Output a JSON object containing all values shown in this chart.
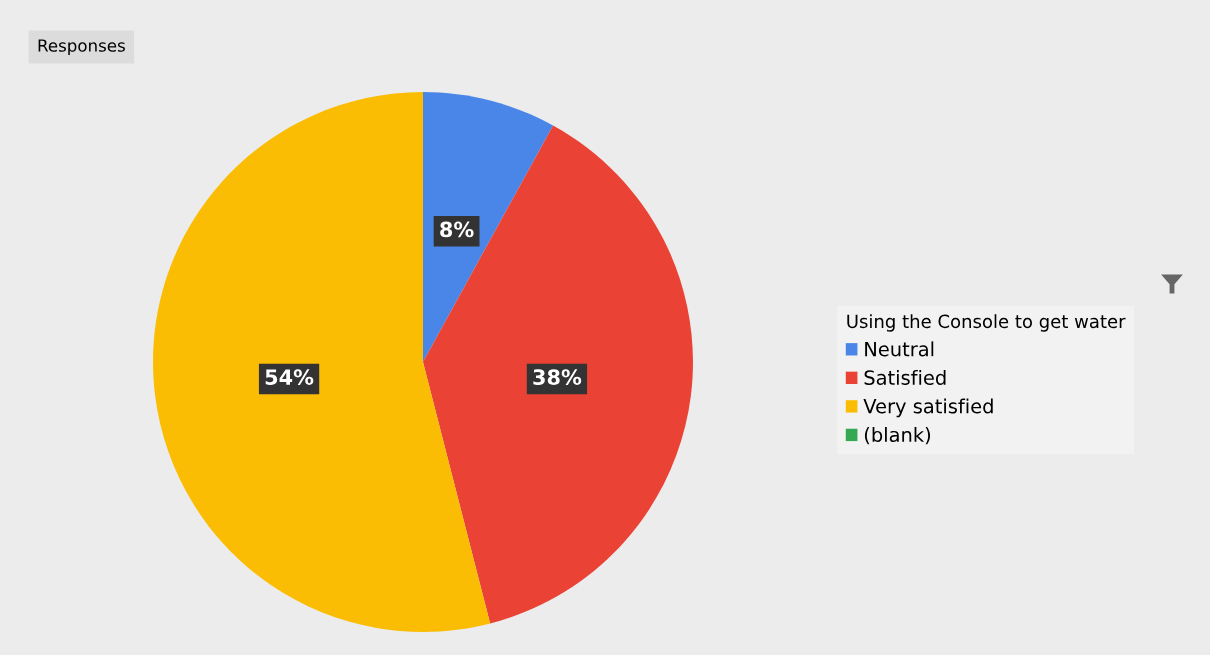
{
  "chart_data": {
    "type": "pie",
    "categories": [
      "Neutral",
      "Satisfied",
      "Very satisfied",
      "(blank)"
    ],
    "values": [
      8,
      38,
      54,
      0
    ],
    "colors": [
      "#4a86e8",
      "#ea4335",
      "#fbbc04",
      "#34a853"
    ],
    "value_labels": [
      "8%",
      "38%",
      "54%",
      null
    ],
    "legend_title": "Using the Console to get water",
    "legend": "right",
    "annotations": [
      "Responses"
    ]
  }
}
